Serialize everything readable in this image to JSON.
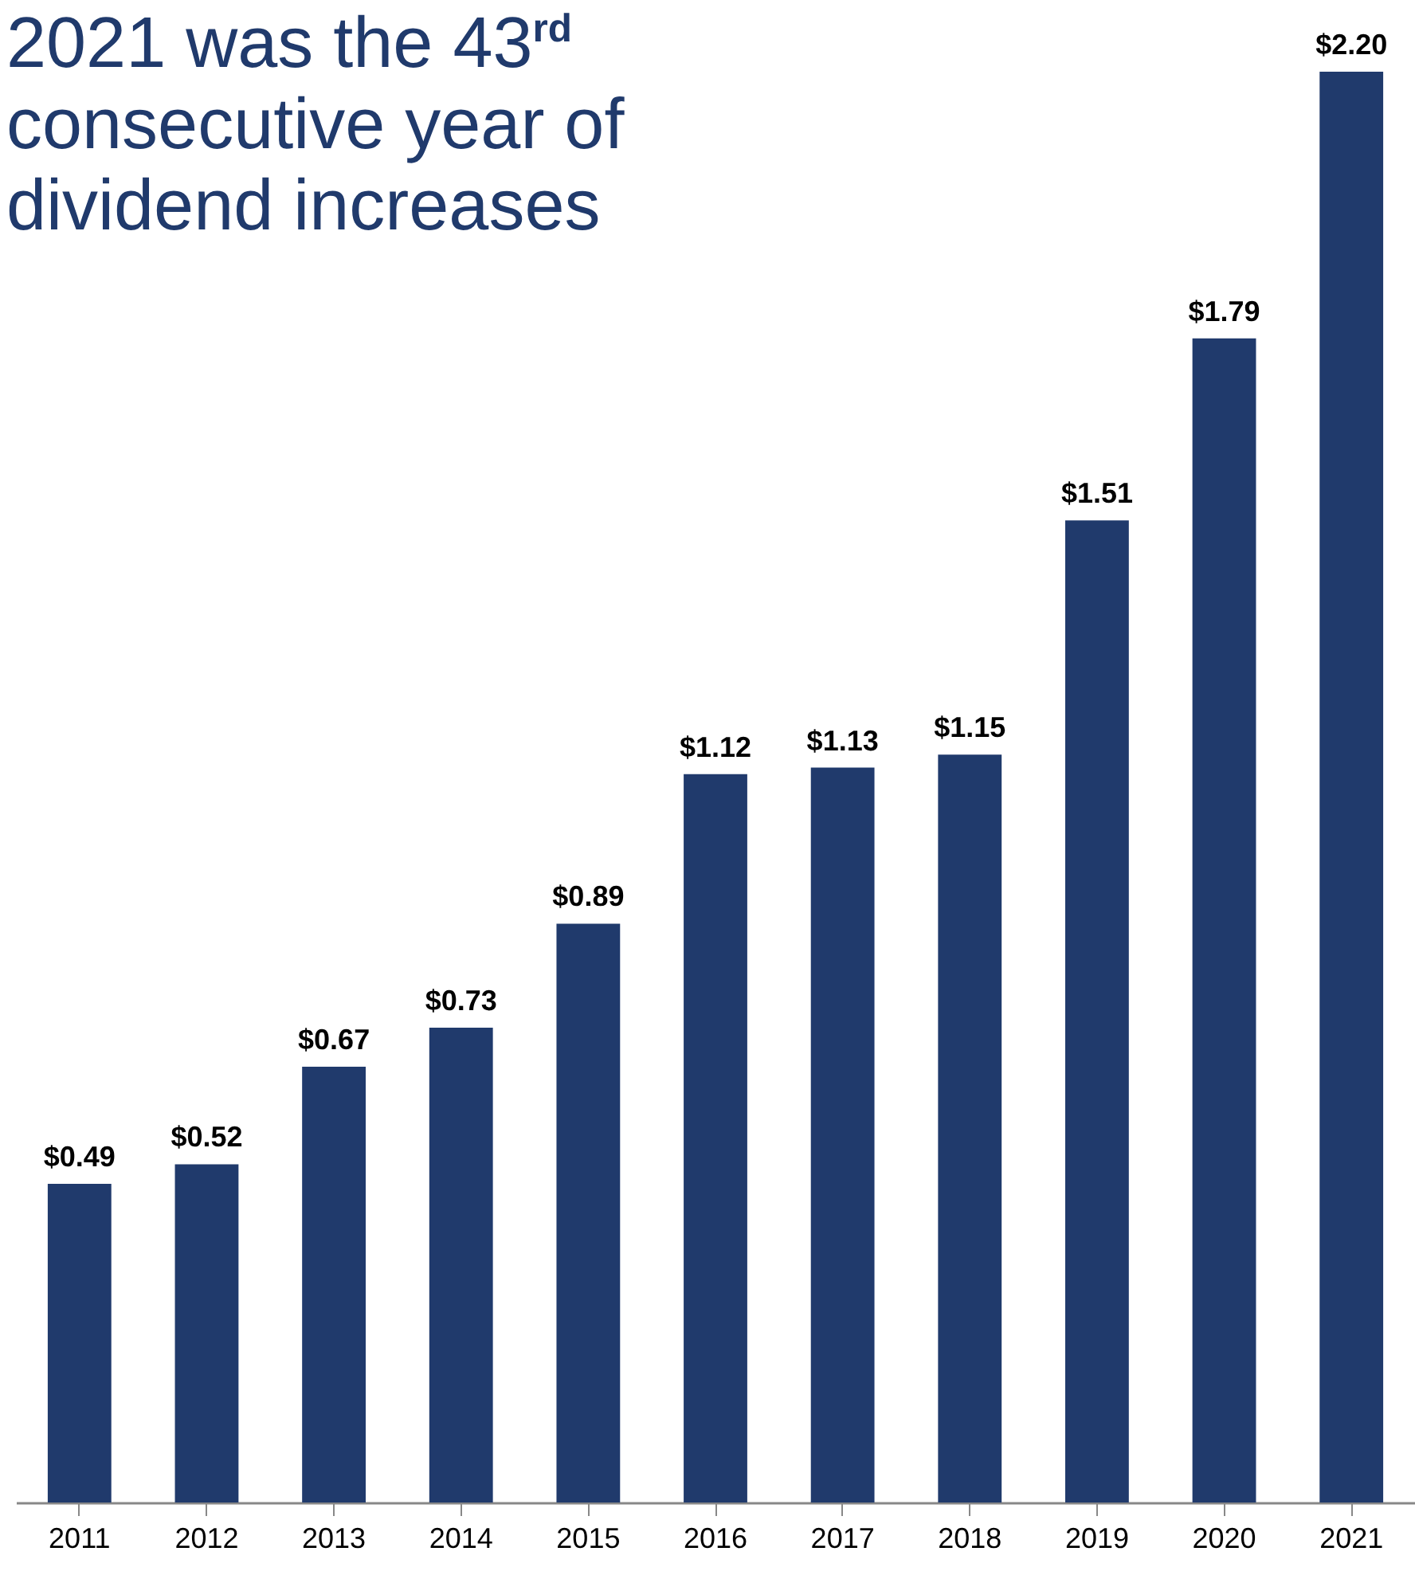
{
  "chart_data": {
    "type": "bar",
    "title": "2021 was the 43$^{rd}$ consecutive year of dividend increases",
    "categories": [
      "2011",
      "2012",
      "2013",
      "2014",
      "2015",
      "2016",
      "2017",
      "2018",
      "2019",
      "2020",
      "2021"
    ],
    "values": [
      0.49,
      0.52,
      0.67,
      0.73,
      0.89,
      1.12,
      1.13,
      1.15,
      1.51,
      1.79,
      2.2
    ],
    "value_labels": [
      "$0.49",
      "$0.52",
      "$0.67",
      "$0.73",
      "$0.89",
      "$1.12",
      "$1.13",
      "$1.15",
      "$1.51",
      "$1.79",
      "$2.20"
    ],
    "color": "#203a6c"
  }
}
